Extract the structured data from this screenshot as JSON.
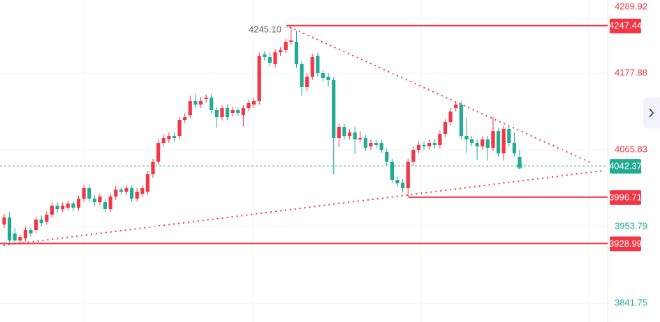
{
  "chart_data": {
    "type": "candlestick",
    "up_color": "#f23645",
    "down_color": "#22ab94",
    "ylim": [
      3814.3,
      4289.92
    ],
    "yticks": [
      4289.92,
      4177.88,
      4065.83,
      3953.79,
      3841.75
    ],
    "grid": true,
    "ohlc": [
      [
        3956.8,
        3972,
        3952,
        3967.0
      ],
      [
        3967.0,
        3975,
        3928,
        3933.4
      ],
      [
        3943.6,
        3952,
        3929,
        3933.4
      ],
      [
        3933.4,
        3942,
        3927,
        3938.5
      ],
      [
        3936.5,
        3953,
        3932,
        3948.7
      ],
      [
        3948.7,
        3952,
        3939,
        3943.6
      ],
      [
        3948.7,
        3968,
        3944,
        3964.0
      ],
      [
        3964.0,
        3970,
        3954,
        3958.9
      ],
      [
        3960.9,
        3976,
        3956,
        3971.1
      ],
      [
        3971.1,
        3990,
        3966,
        3984.3
      ],
      [
        3984.3,
        3989,
        3974,
        3979.2
      ],
      [
        3979.2,
        3989,
        3975,
        3984.3
      ],
      [
        3981.3,
        3992,
        3977,
        3987.4
      ],
      [
        3987.4,
        3991,
        3976,
        3981.3
      ],
      [
        3981.3,
        3999,
        3977,
        3994.5
      ],
      [
        3994.5,
        4015,
        3990,
        4009.8
      ],
      [
        4009.8,
        4014,
        3990,
        3994.5
      ],
      [
        3994.5,
        3999,
        3984,
        3989.4
      ],
      [
        3989.4,
        4002,
        3985,
        3997.6
      ],
      [
        3989.4,
        3994,
        3974,
        3979.2
      ],
      [
        3979.2,
        4002,
        3975,
        3997.6
      ],
      [
        3997.6,
        4013,
        3993,
        4007.8
      ],
      [
        4007.8,
        4012,
        4000,
        4004.7
      ],
      [
        4004.7,
        4014,
        4000,
        4009.8
      ],
      [
        4009.8,
        4014,
        3990,
        3994.5
      ],
      [
        3994.5,
        4010,
        3990,
        4004.7
      ],
      [
        4001.7,
        4014,
        3997,
        4009.8
      ],
      [
        4004.7,
        4035,
        4000,
        4030.2
      ],
      [
        4030.2,
        4053,
        4025,
        4048.5
      ],
      [
        4048.5,
        4081,
        4044,
        4076.0
      ],
      [
        4076.0,
        4088,
        4071,
        4083.1
      ],
      [
        4081.1,
        4091,
        4076,
        4086.2
      ],
      [
        4086.2,
        4091,
        4078,
        4083.1
      ],
      [
        4086.2,
        4114,
        4081,
        4109.6
      ],
      [
        4109.6,
        4119,
        4105,
        4113.7
      ],
      [
        4116.7,
        4145,
        4112,
        4137.1
      ],
      [
        4137.1,
        4147,
        4127,
        4132.0
      ],
      [
        4132.0,
        4143,
        4127,
        4137.1
      ],
      [
        4140.2,
        4147,
        4135,
        4142.2
      ],
      [
        4142.2,
        4147,
        4119,
        4123.9
      ],
      [
        4123.9,
        4128,
        4098,
        4113.7
      ],
      [
        4113.7,
        4131,
        4109,
        4126.9
      ],
      [
        4126.9,
        4132,
        4109,
        4113.7
      ],
      [
        4119.8,
        4129,
        4115,
        4123.9
      ],
      [
        4123.9,
        4128,
        4115,
        4119.8
      ],
      [
        4116.7,
        4131,
        4100,
        4126.9
      ],
      [
        4126.9,
        4139,
        4122,
        4134.1
      ],
      [
        4132.0,
        4142,
        4127,
        4137.1
      ],
      [
        4137.1,
        4208,
        4132,
        4203.3
      ],
      [
        4205.4,
        4210,
        4196,
        4201.3
      ],
      [
        4201.3,
        4208,
        4188,
        4193.1
      ],
      [
        4191.1,
        4213,
        4186,
        4208.4
      ],
      [
        4208.4,
        4216,
        4203,
        4211.5
      ],
      [
        4211.5,
        4228,
        4207,
        4223.7
      ],
      [
        4223.7,
        4245.1,
        4219,
        4225.7
      ],
      [
        4223.7,
        4240,
        4186,
        4191.1
      ],
      [
        4191.1,
        4196,
        4145,
        4157.5
      ],
      [
        4157.5,
        4178,
        4152,
        4172.8
      ],
      [
        4172.8,
        4206,
        4168,
        4201.3
      ],
      [
        4203.3,
        4208,
        4173,
        4177.9
      ],
      [
        4177.9,
        4183,
        4166,
        4170.7
      ],
      [
        4172.8,
        4178,
        4158,
        4167.7
      ],
      [
        4167.7,
        4172,
        4030,
        4083.1
      ],
      [
        4083.1,
        4104,
        4070,
        4099.4
      ],
      [
        4099.4,
        4104,
        4081,
        4086.2
      ],
      [
        4086.2,
        4096,
        4081,
        4091.3
      ],
      [
        4091.3,
        4100,
        4060,
        4081.1
      ],
      [
        4081.1,
        4093,
        4077,
        4083.1
      ],
      [
        4083.1,
        4088,
        4064,
        4068.9
      ],
      [
        4070.9,
        4081,
        4066,
        4076.0
      ],
      [
        4076.0,
        4081,
        4068,
        4073.0
      ],
      [
        4076.0,
        4081,
        4061,
        4065.8
      ],
      [
        4062.8,
        4068,
        4043,
        4048.5
      ],
      [
        4048.5,
        4053,
        4017,
        4022.0
      ],
      [
        4022.0,
        4027,
        4012,
        4016.9
      ],
      [
        4017.9,
        4023,
        4004,
        4009.8
      ],
      [
        4009.8,
        4053,
        3996.71,
        4048.5
      ],
      [
        4048.5,
        4071,
        4043,
        4065.8
      ],
      [
        4065.8,
        4078,
        4061,
        4073.0
      ],
      [
        4073.0,
        4078,
        4066,
        4070.9
      ],
      [
        4070.9,
        4081,
        4066,
        4076.0
      ],
      [
        4076.0,
        4081,
        4068,
        4073.0
      ],
      [
        4073.0,
        4094,
        4068,
        4089.2
      ],
      [
        4089.2,
        4111,
        4084,
        4106.6
      ],
      [
        4106.6,
        4127,
        4101,
        4121.8
      ],
      [
        4126.9,
        4137,
        4122,
        4132.0
      ],
      [
        4132.0,
        4137,
        4081,
        4086.2
      ],
      [
        4086.2,
        4112,
        4061,
        4081.1
      ],
      [
        4081.1,
        4086,
        4071,
        4076.0
      ],
      [
        4076.0,
        4081,
        4051,
        4070.9
      ],
      [
        4070.9,
        4086,
        4066,
        4081.1
      ],
      [
        4081.1,
        4086,
        4050,
        4068.9
      ],
      [
        4068.9,
        4114,
        4064,
        4093.3
      ],
      [
        4093.3,
        4098,
        4056,
        4060.7
      ],
      [
        4060.7,
        4101,
        4050,
        4096.4
      ],
      [
        4096.4,
        4101,
        4071,
        4076.0
      ],
      [
        4076.0,
        4091,
        4056,
        4060.7
      ],
      [
        4055.6,
        4066,
        4038,
        4042.37
      ]
    ],
    "current_price": 4042.37,
    "levels": [
      4247.44,
      3996.71,
      3928.99
    ],
    "level_color": "#f23645",
    "annotation": {
      "value": 4245.1,
      "label": "4245.10"
    }
  }
}
